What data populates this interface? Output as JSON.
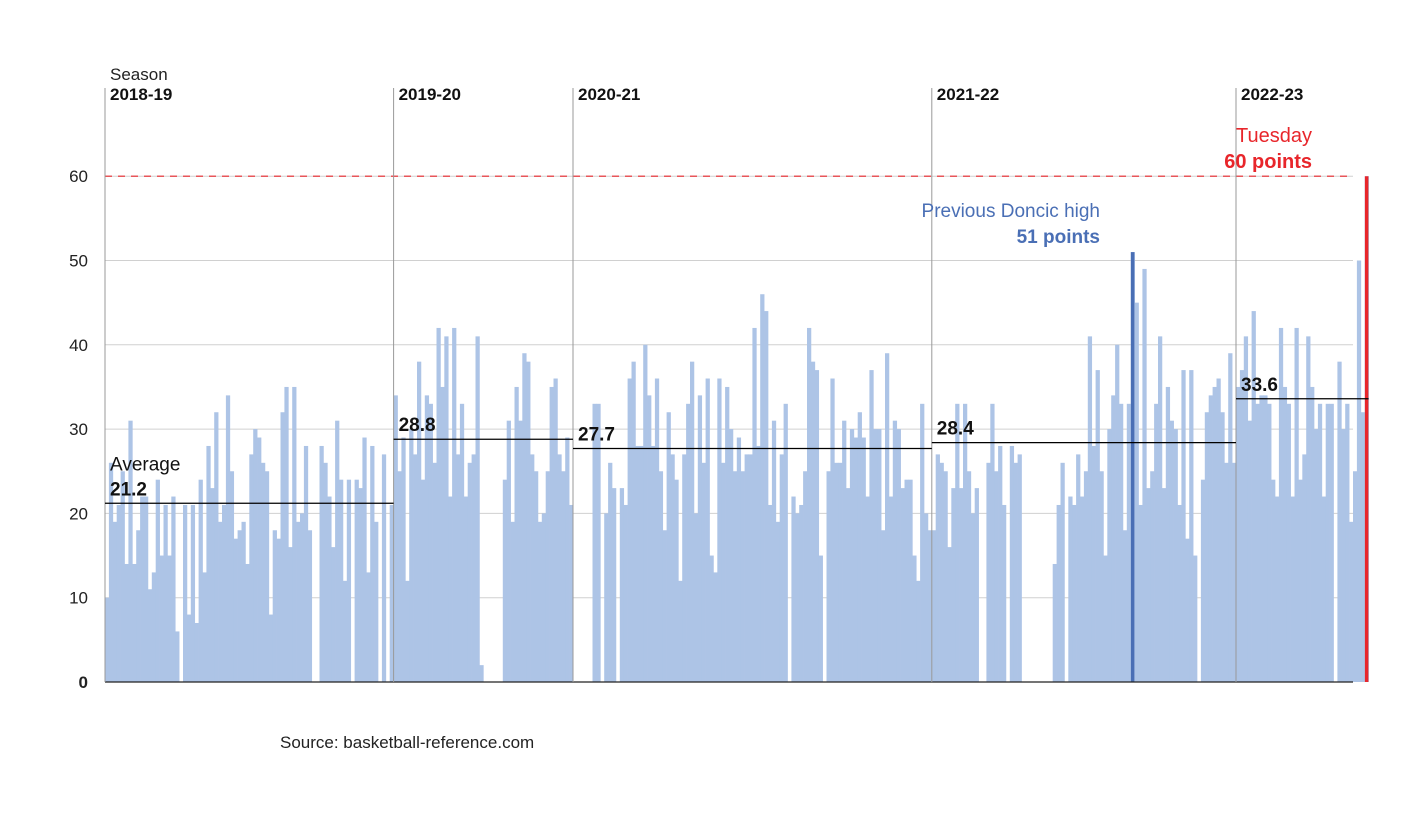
{
  "source": "Source: basketball-reference.com",
  "chart_data": {
    "type": "bar",
    "season_label": "Season",
    "ylim": [
      0,
      70
    ],
    "yticks": [
      0,
      10,
      20,
      30,
      40,
      50,
      60
    ],
    "grid": true,
    "colors": {
      "bar": "#adc4e6",
      "average": "#000000",
      "high": "#4a6fb5",
      "record": "#e8262b",
      "grid": "#d0d0d0",
      "axis": "#222222"
    },
    "seasons": [
      {
        "name": "2018-19",
        "average": 21.2,
        "average_label": "21.2",
        "average_caption": "Average",
        "points": [
          10,
          26,
          19,
          21,
          25,
          14,
          31,
          14,
          18,
          22,
          22,
          11,
          13,
          24,
          15,
          21,
          15,
          22,
          6,
          0,
          21,
          8,
          21,
          7,
          24,
          13,
          28,
          23,
          32,
          19,
          21,
          34,
          25,
          17,
          18,
          19,
          14,
          27,
          30,
          29,
          26,
          25,
          8,
          18,
          17,
          32,
          35,
          16,
          35,
          19,
          20,
          28,
          18,
          0,
          0,
          28,
          26,
          22,
          16,
          31,
          24,
          12,
          24,
          0,
          24,
          23,
          29,
          13,
          28,
          19,
          0,
          27,
          0,
          21
        ]
      },
      {
        "name": "2019-20",
        "average": 28.8,
        "average_label": "28.8",
        "points": [
          34,
          25,
          29,
          12,
          30,
          27,
          38,
          24,
          34,
          33,
          26,
          42,
          35,
          41,
          22,
          42,
          27,
          33,
          22,
          26,
          27,
          41,
          2,
          0,
          0,
          0,
          0,
          0,
          24,
          31,
          19,
          35,
          31,
          39,
          38,
          27,
          25,
          19,
          20,
          25,
          35,
          36,
          27,
          25,
          29,
          21
        ]
      },
      {
        "name": "2020-21",
        "average": 27.7,
        "average_label": "27.7",
        "points": [
          0,
          0,
          0,
          0,
          0,
          33,
          33,
          0,
          20,
          26,
          23,
          0,
          23,
          21,
          36,
          38,
          28,
          28,
          40,
          34,
          28,
          36,
          25,
          18,
          32,
          27,
          24,
          12,
          27,
          33,
          38,
          20,
          34,
          26,
          36,
          15,
          13,
          36,
          26,
          35,
          30,
          25,
          29,
          25,
          27,
          27,
          42,
          28,
          46,
          44,
          21,
          31,
          19,
          27,
          33,
          0,
          22,
          20,
          21,
          25,
          42,
          38,
          37,
          15,
          0,
          25,
          36,
          26,
          26,
          31,
          23,
          30,
          29,
          32,
          29,
          22,
          37,
          30,
          30,
          18,
          39,
          22,
          31,
          30,
          23,
          24,
          24,
          15,
          12,
          33,
          20,
          18
        ]
      },
      {
        "name": "2021-22",
        "average": 28.4,
        "average_label": "28.4",
        "points": [
          18,
          27,
          26,
          25,
          16,
          23,
          33,
          23,
          33,
          25,
          20,
          23,
          0,
          0,
          26,
          33,
          25,
          28,
          21,
          0,
          28,
          26,
          27,
          0,
          0,
          0,
          0,
          0,
          0,
          0,
          0,
          14,
          21,
          26,
          0,
          22,
          21,
          27,
          22,
          25,
          41,
          28,
          37,
          25,
          15,
          30,
          34,
          40,
          33,
          18,
          33,
          51,
          45,
          21,
          49,
          23,
          25,
          33,
          41,
          23,
          35,
          31,
          30,
          21,
          37,
          17,
          37,
          15,
          0,
          24,
          32,
          34,
          35,
          36,
          32,
          26,
          39,
          26
        ]
      },
      {
        "name": "2022-23",
        "average": 33.6,
        "average_label": "33.6",
        "points": [
          35,
          37,
          41,
          31,
          44,
          33,
          34,
          34,
          33,
          24,
          22,
          42,
          35,
          33,
          22,
          42,
          24,
          27,
          41,
          35,
          30,
          33,
          22,
          33,
          33,
          0,
          38,
          30,
          33,
          19,
          25,
          50,
          32,
          60
        ]
      }
    ],
    "annotations": {
      "previous_high": {
        "label": "Previous Doncic high",
        "value": 51,
        "value_label": "51 points"
      },
      "record": {
        "label": "Tuesday",
        "value": 60,
        "value_label": "60 points"
      }
    }
  }
}
